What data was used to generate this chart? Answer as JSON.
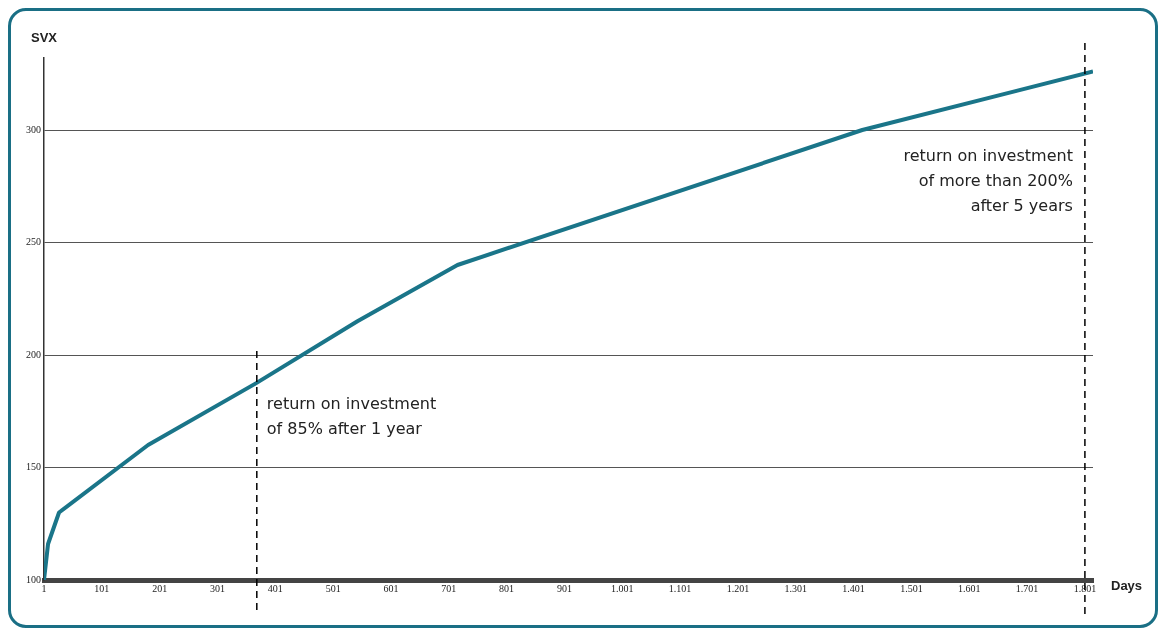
{
  "chart_data": {
    "type": "line",
    "ylabel": "SVX",
    "xlabel": "Days",
    "x": [
      1,
      8,
      27,
      181,
      368,
      543,
      716,
      1416,
      1815
    ],
    "series": [
      {
        "color": "#1a7589",
        "values": [
          100,
          116,
          130,
          160,
          187.5,
          215,
          240,
          300,
          326
        ]
      }
    ],
    "xlim": [
      1,
      1815
    ],
    "xticks": [
      1,
      101,
      201,
      301,
      401,
      501,
      601,
      701,
      801,
      901,
      {
        "value": 1001,
        "label": "1.001"
      },
      {
        "value": 1101,
        "label": "1.101"
      },
      {
        "value": 1201,
        "label": "1.201"
      },
      {
        "value": 1301,
        "label": "1.301"
      },
      {
        "value": 1401,
        "label": "1.401"
      },
      {
        "value": 1501,
        "label": "1.501"
      },
      {
        "value": 1601,
        "label": "1.601"
      },
      {
        "value": 1701,
        "label": "1.701"
      },
      {
        "value": 1801,
        "label": "1.801"
      }
    ],
    "ylim": [
      100,
      332
    ],
    "yticks": [
      100,
      150,
      200,
      250,
      300
    ],
    "grid": "y",
    "legend": false,
    "marker": "none",
    "line_style": "solid",
    "ref_lines": [
      {
        "axis": "x",
        "value": 369,
        "label": "return on investment\nof 85% after 1 year",
        "line_style": "dashed",
        "color": "#000000"
      },
      {
        "axis": "x",
        "value": 1801,
        "label": "return on investment\nof more than 200%\nafter 5 years",
        "line_style": "dashed",
        "color": "#000000"
      }
    ]
  }
}
